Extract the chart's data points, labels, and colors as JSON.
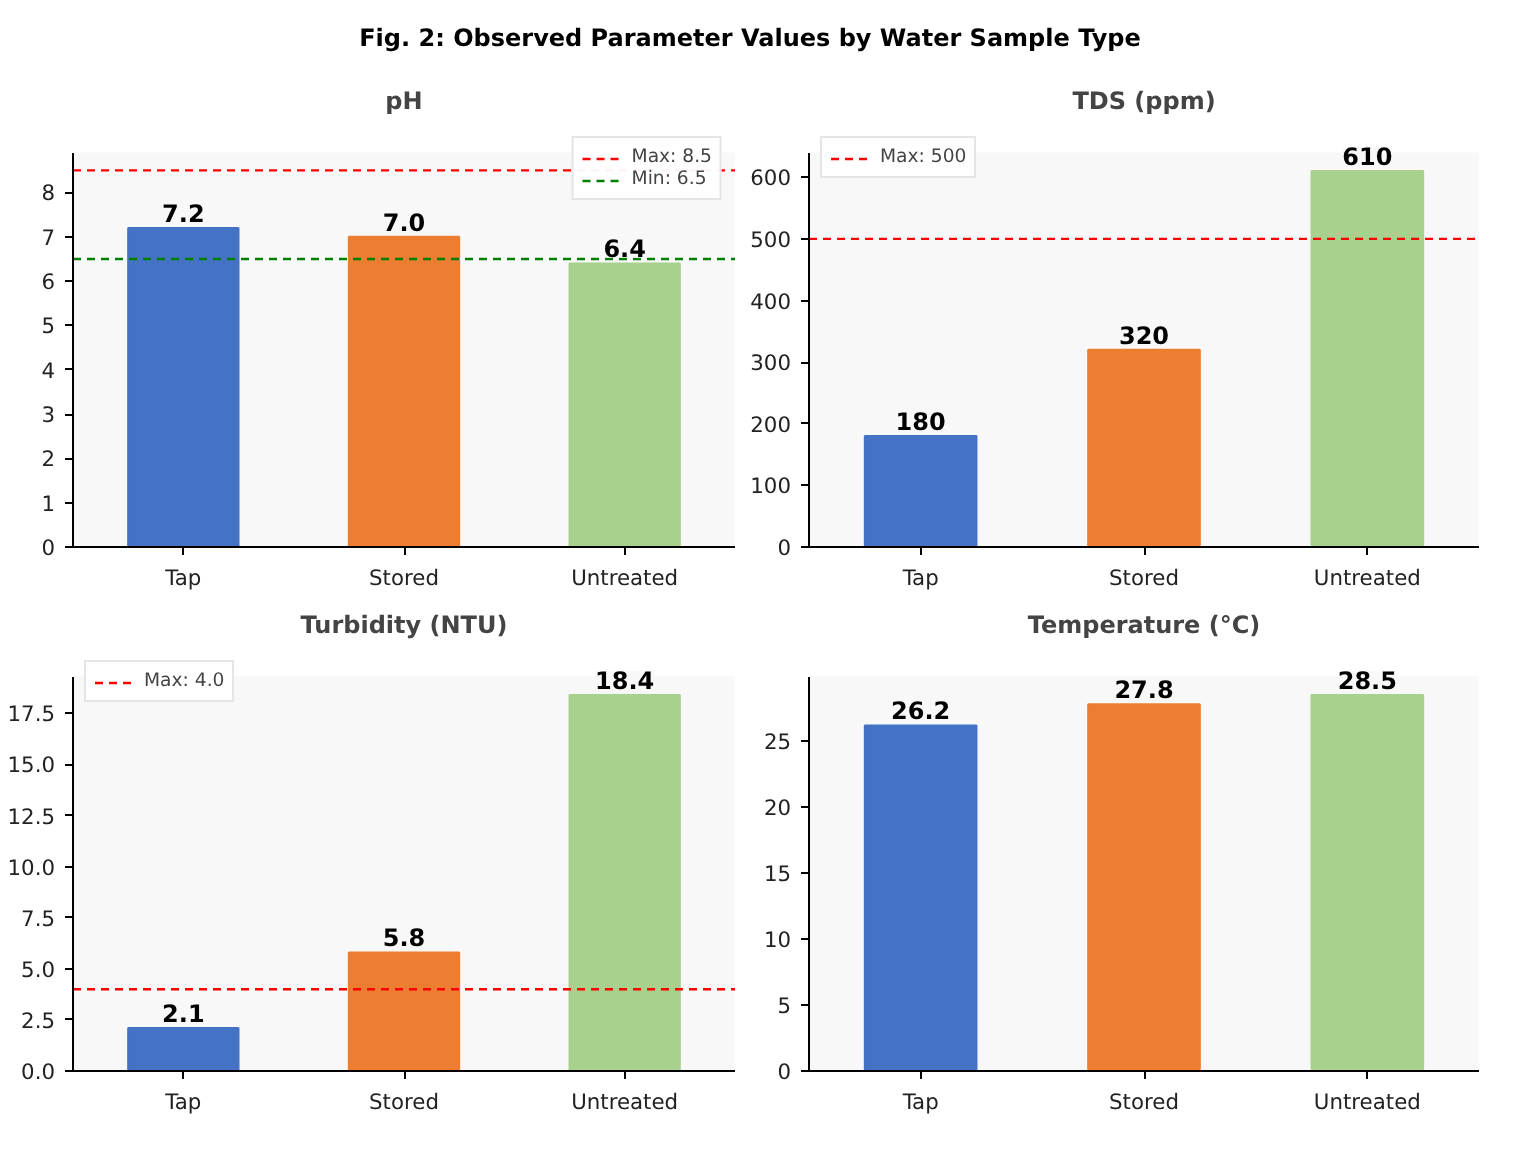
{
  "chart_data": [
    {
      "type": "bar",
      "title": "pH",
      "annotations": [
        "Fig. 2: Observed Parameter Values by Water Sample Type"
      ],
      "categories": [
        "Tap",
        "Stored",
        "Untreated"
      ],
      "values": [
        7.2,
        7.0,
        6.4
      ],
      "value_labels": [
        "7.2",
        "7.0",
        "6.4"
      ],
      "colors": [
        "#4472c4",
        "#ed7d31",
        "#a9d18e"
      ],
      "ylim": [
        0,
        8.9
      ],
      "yticks": [
        0,
        1,
        2,
        3,
        4,
        5,
        6,
        7,
        8
      ],
      "grid": false,
      "legend": "top right",
      "ref_lines": [
        {
          "axis": "y",
          "value": 8.5,
          "label": "Max: 8.5",
          "color": "#ff0000",
          "line_style": "dashed"
        },
        {
          "axis": "y",
          "value": 6.5,
          "label": "Min: 6.5",
          "color": "#008000",
          "line_style": "dashed"
        }
      ]
    },
    {
      "type": "bar",
      "title": "TDS (ppm)",
      "categories": [
        "Tap",
        "Stored",
        "Untreated"
      ],
      "values": [
        180,
        320,
        610
      ],
      "value_labels": [
        "180",
        "320",
        "610"
      ],
      "colors": [
        "#4472c4",
        "#ed7d31",
        "#a9d18e"
      ],
      "ylim": [
        0,
        640
      ],
      "yticks": [
        0,
        100,
        200,
        300,
        400,
        500,
        600
      ],
      "grid": false,
      "legend": "top left",
      "ref_lines": [
        {
          "axis": "y",
          "value": 500,
          "label": "Max: 500",
          "color": "#ff0000",
          "line_style": "dashed"
        }
      ]
    },
    {
      "type": "bar",
      "title": "Turbidity (NTU)",
      "categories": [
        "Tap",
        "Stored",
        "Untreated"
      ],
      "values": [
        2.1,
        5.8,
        18.4
      ],
      "value_labels": [
        "2.1",
        "5.8",
        "18.4"
      ],
      "colors": [
        "#4472c4",
        "#ed7d31",
        "#a9d18e"
      ],
      "ylim": [
        0,
        19.3
      ],
      "yticks": [
        {
          "value": 0,
          "label": "0.0"
        },
        {
          "value": 2.5,
          "label": "2.5"
        },
        {
          "value": 5,
          "label": "5.0"
        },
        {
          "value": 7.5,
          "label": "7.5"
        },
        {
          "value": 10,
          "label": "10.0"
        },
        {
          "value": 12.5,
          "label": "12.5"
        },
        {
          "value": 15,
          "label": "15.0"
        },
        {
          "value": 17.5,
          "label": "17.5"
        }
      ],
      "grid": false,
      "legend": "top left",
      "ref_lines": [
        {
          "axis": "y",
          "value": 4.0,
          "label": "Max: 4.0",
          "color": "#ff0000",
          "line_style": "dashed"
        }
      ]
    },
    {
      "type": "bar",
      "title": "Temperature (°C)",
      "categories": [
        "Tap",
        "Stored",
        "Untreated"
      ],
      "values": [
        26.2,
        27.8,
        28.5
      ],
      "value_labels": [
        "26.2",
        "27.8",
        "28.5"
      ],
      "colors": [
        "#4472c4",
        "#ed7d31",
        "#a9d18e"
      ],
      "ylim": [
        0,
        29.9
      ],
      "yticks": [
        0,
        5,
        10,
        15,
        20,
        25
      ],
      "grid": false
    }
  ]
}
